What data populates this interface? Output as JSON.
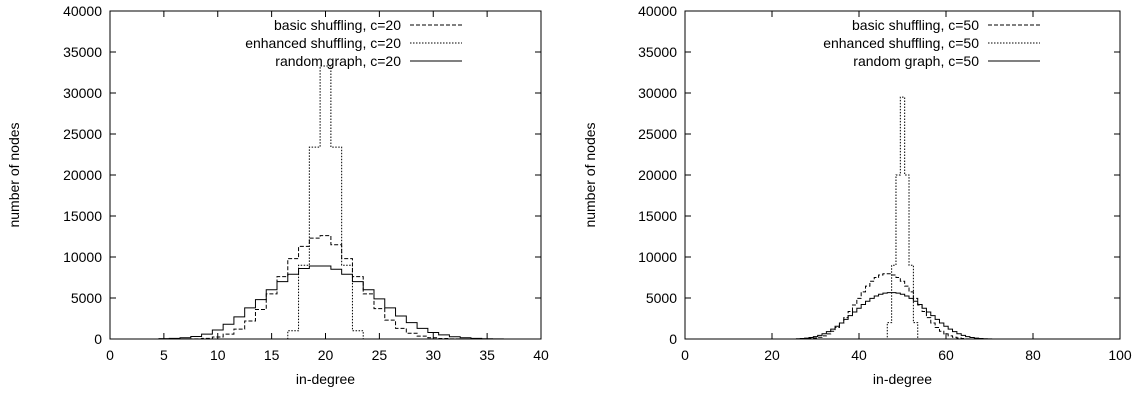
{
  "chart_data": [
    {
      "type": "line",
      "step": true,
      "xlabel": "in-degree",
      "ylabel": "number of nodes",
      "xlim": [
        0,
        40
      ],
      "ylim": [
        0,
        40000
      ],
      "xticks": [
        0,
        5,
        10,
        15,
        20,
        25,
        30,
        35,
        40
      ],
      "yticks": [
        0,
        5000,
        10000,
        15000,
        20000,
        25000,
        30000,
        35000,
        40000
      ],
      "grid": false,
      "legend_position": "top-right",
      "series": [
        {
          "name": "basic shuffling, c=20",
          "style": "dashed",
          "x": [
            5,
            6,
            7,
            8,
            9,
            10,
            11,
            12,
            13,
            14,
            15,
            16,
            17,
            18,
            19,
            20,
            21,
            22,
            23,
            24,
            25,
            26,
            27,
            28,
            29,
            30,
            31,
            32,
            33,
            34,
            35,
            36,
            37
          ],
          "values": [
            0,
            0,
            0,
            20,
            80,
            250,
            600,
            1200,
            2200,
            3600,
            5500,
            7600,
            9800,
            11300,
            12300,
            12600,
            11500,
            9800,
            7600,
            5500,
            3700,
            2300,
            1300,
            700,
            350,
            150,
            60,
            20,
            0,
            0,
            0,
            0,
            0
          ]
        },
        {
          "name": "enhanced shuffling, c=20",
          "style": "dotted",
          "x": [
            5,
            6,
            7,
            8,
            9,
            10,
            11,
            12,
            13,
            14,
            15,
            16,
            17,
            18,
            19,
            20,
            21,
            22,
            23,
            24,
            25,
            26,
            27,
            28,
            29,
            30,
            31,
            32,
            33,
            34,
            35,
            36,
            37
          ],
          "values": [
            0,
            0,
            0,
            0,
            0,
            0,
            0,
            0,
            0,
            0,
            0,
            0,
            1000,
            9000,
            23400,
            33300,
            23400,
            9000,
            1000,
            0,
            0,
            0,
            0,
            0,
            0,
            0,
            0,
            0,
            0,
            0,
            0,
            0,
            0
          ]
        },
        {
          "name": "random graph, c=20",
          "style": "solid",
          "x": [
            5,
            6,
            7,
            8,
            9,
            10,
            11,
            12,
            13,
            14,
            15,
            16,
            17,
            18,
            19,
            20,
            21,
            22,
            23,
            24,
            25,
            26,
            27,
            28,
            29,
            30,
            31,
            32,
            33,
            34,
            35,
            36,
            37
          ],
          "values": [
            40,
            80,
            150,
            300,
            600,
            1100,
            1800,
            2700,
            3800,
            4800,
            6000,
            7000,
            7900,
            8600,
            8900,
            8900,
            8500,
            7900,
            7000,
            6000,
            4900,
            3800,
            2800,
            2000,
            1300,
            800,
            500,
            280,
            150,
            70,
            30,
            10,
            0
          ]
        }
      ]
    },
    {
      "type": "line",
      "step": true,
      "xlabel": "in-degree",
      "ylabel": "number of nodes",
      "xlim": [
        0,
        100
      ],
      "ylim": [
        0,
        40000
      ],
      "xticks": [
        0,
        20,
        40,
        60,
        80,
        100
      ],
      "yticks": [
        0,
        5000,
        10000,
        15000,
        20000,
        25000,
        30000,
        35000,
        40000
      ],
      "grid": false,
      "legend_position": "top-right",
      "series": [
        {
          "name": "basic shuffling, c=50",
          "style": "dashed",
          "x": [
            26,
            27,
            28,
            29,
            30,
            31,
            32,
            33,
            34,
            35,
            36,
            37,
            38,
            39,
            40,
            41,
            42,
            43,
            44,
            45,
            46,
            47,
            48,
            49,
            50,
            51,
            52,
            53,
            54,
            55,
            56,
            57,
            58,
            59,
            60,
            61,
            62,
            63,
            64,
            65,
            66,
            67,
            68,
            69,
            70,
            71,
            72
          ],
          "values": [
            0,
            0,
            20,
            60,
            120,
            220,
            380,
            620,
            950,
            1400,
            1950,
            2600,
            3350,
            4150,
            4950,
            5750,
            6450,
            7050,
            7500,
            7800,
            7950,
            7950,
            7800,
            7500,
            7050,
            6450,
            5750,
            4950,
            4150,
            3350,
            2600,
            1950,
            1400,
            950,
            620,
            380,
            220,
            120,
            60,
            20,
            0,
            0,
            0,
            0,
            0,
            0,
            0
          ]
        },
        {
          "name": "enhanced shuffling, c=50",
          "style": "dotted",
          "x": [
            26,
            27,
            28,
            29,
            30,
            31,
            32,
            33,
            34,
            35,
            36,
            37,
            38,
            39,
            40,
            41,
            42,
            43,
            44,
            45,
            46,
            47,
            48,
            49,
            50,
            51,
            52,
            53,
            54,
            55,
            56,
            57,
            58,
            59,
            60,
            61,
            62,
            63,
            64,
            65,
            66,
            67,
            68,
            69,
            70,
            71,
            72
          ],
          "values": [
            0,
            0,
            0,
            0,
            0,
            0,
            0,
            0,
            0,
            0,
            0,
            0,
            0,
            0,
            0,
            0,
            0,
            0,
            0,
            0,
            0,
            2000,
            9000,
            20000,
            29500,
            20000,
            9000,
            2000,
            0,
            0,
            0,
            0,
            0,
            0,
            0,
            0,
            0,
            0,
            0,
            0,
            0,
            0,
            0,
            0,
            0,
            0,
            0
          ]
        },
        {
          "name": "random graph, c=50",
          "style": "solid",
          "x": [
            26,
            27,
            28,
            29,
            30,
            31,
            32,
            33,
            34,
            35,
            36,
            37,
            38,
            39,
            40,
            41,
            42,
            43,
            44,
            45,
            46,
            47,
            48,
            49,
            50,
            51,
            52,
            53,
            54,
            55,
            56,
            57,
            58,
            59,
            60,
            61,
            62,
            63,
            64,
            65,
            66,
            67,
            68,
            69,
            70,
            71,
            72
          ],
          "values": [
            30,
            60,
            110,
            180,
            290,
            440,
            640,
            900,
            1200,
            1550,
            1950,
            2400,
            2850,
            3300,
            3750,
            4200,
            4600,
            4950,
            5250,
            5450,
            5600,
            5650,
            5650,
            5600,
            5450,
            5250,
            4950,
            4600,
            4200,
            3750,
            3300,
            2850,
            2400,
            1950,
            1550,
            1200,
            900,
            640,
            440,
            290,
            180,
            110,
            60,
            30,
            15,
            5,
            0
          ]
        }
      ]
    }
  ]
}
